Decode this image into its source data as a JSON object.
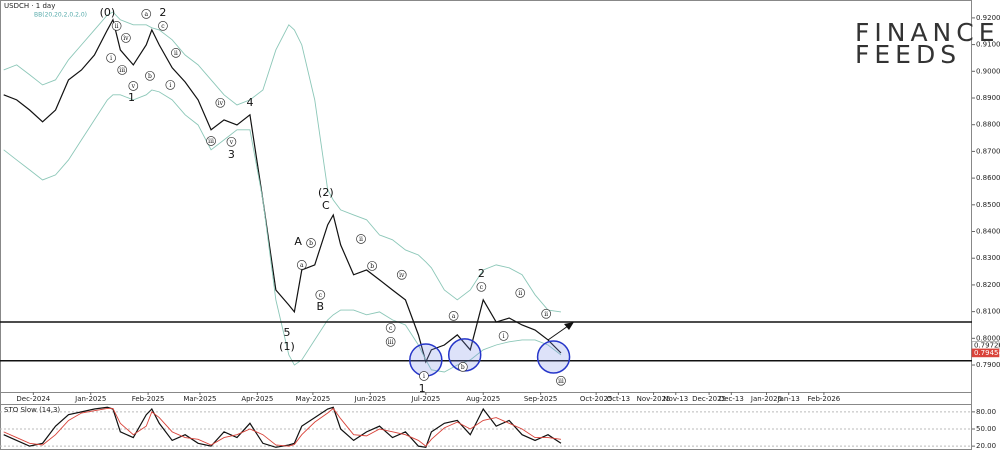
{
  "header": {
    "symbol": "USDCH · 1 day",
    "indicator": "BB(20,20,2,0,2,0)"
  },
  "logo": {
    "line1": "FINANCE",
    "line2": "FEEDS"
  },
  "chart_data": [
    {
      "type": "line",
      "x": [
        "2024-11-15",
        "2024-11-22",
        "2024-11-29",
        "2024-12-06",
        "2024-12-13",
        "2024-12-20",
        "2024-12-27",
        "2025-01-03",
        "2025-01-10",
        "2025-01-13",
        "2025-01-17",
        "2025-01-24",
        "2025-01-31",
        "2025-02-03",
        "2025-02-07",
        "2025-02-14",
        "2025-02-21",
        "2025-02-28",
        "2025-03-07",
        "2025-03-14",
        "2025-03-21",
        "2025-03-28",
        "2025-04-04",
        "2025-04-11",
        "2025-04-18",
        "2025-04-21",
        "2025-04-25",
        "2025-05-02",
        "2025-05-09",
        "2025-05-12",
        "2025-05-16",
        "2025-05-23",
        "2025-05-30",
        "2025-06-06",
        "2025-06-13",
        "2025-06-20",
        "2025-06-27",
        "2025-07-01",
        "2025-07-04",
        "2025-07-11",
        "2025-07-18",
        "2025-07-25",
        "2025-08-01",
        "2025-08-08",
        "2025-08-15",
        "2025-08-22",
        "2025-08-29",
        "2025-09-05",
        "2025-09-12"
      ],
      "series": [
        {
          "color": "#111111",
          "values": [
            0.8912,
            0.8893,
            0.8855,
            0.8811,
            0.8855,
            0.8968,
            0.9005,
            0.9061,
            0.9155,
            0.9193,
            0.908,
            0.9024,
            0.9099,
            0.9155,
            0.9099,
            0.9013,
            0.896,
            0.8893,
            0.8781,
            0.8818,
            0.8799,
            0.8837,
            0.8518,
            0.8181,
            0.8125,
            0.8099,
            0.8256,
            0.8275,
            0.8425,
            0.8462,
            0.835,
            0.8238,
            0.8256,
            0.8219,
            0.8181,
            0.8144,
            0.8013,
            0.7912,
            0.7957,
            0.7975,
            0.8013,
            0.7957,
            0.8144,
            0.8061,
            0.8076,
            0.805,
            0.8031,
            0.7994,
            0.7945
          ]
        },
        {
          "color": "#8cc7b8",
          "values": [
            0.9005,
            0.9024,
            0.8987,
            0.8949,
            0.8968,
            0.9043,
            0.9099,
            0.9155,
            0.9211,
            0.9222,
            0.9193,
            0.9174,
            0.9174,
            0.9163,
            0.9155,
            0.9118,
            0.9061,
            0.9024,
            0.8968,
            0.8912,
            0.8874,
            0.8893,
            0.893,
            0.908,
            0.9174,
            0.9155,
            0.9099,
            0.8893,
            0.8556,
            0.8518,
            0.8481,
            0.8462,
            0.8444,
            0.8387,
            0.8369,
            0.8331,
            0.8312,
            0.8286,
            0.8264,
            0.8181,
            0.8144,
            0.8181,
            0.8256,
            0.8275,
            0.8264,
            0.8238,
            0.8163,
            0.8106,
            0.8099
          ]
        },
        {
          "color": "#8cc7b8",
          "values": [
            0.8706,
            0.8668,
            0.8631,
            0.8593,
            0.8612,
            0.8668,
            0.8743,
            0.8818,
            0.8893,
            0.8912,
            0.8912,
            0.8893,
            0.8912,
            0.893,
            0.8923,
            0.8893,
            0.8837,
            0.8799,
            0.8706,
            0.8743,
            0.8781,
            0.8781,
            0.8518,
            0.8144,
            0.7938,
            0.79,
            0.7919,
            0.7994,
            0.8069,
            0.8088,
            0.8106,
            0.8106,
            0.8088,
            0.8099,
            0.8069,
            0.805,
            0.7975,
            0.7919,
            0.7882,
            0.7874,
            0.79,
            0.7919,
            0.7957,
            0.7975,
            0.7987,
            0.7994,
            0.7994,
            0.7975,
            0.7938
          ]
        }
      ],
      "xlim": [
        "2024-11-13",
        "2026-04-22"
      ],
      "xticks": [
        {
          "value": "2024-12-01",
          "label": "Dec-2024"
        },
        {
          "value": "2025-01-01",
          "label": "Jan-2025"
        },
        {
          "value": "2025-02-01",
          "label": "Feb-2025"
        },
        {
          "value": "2025-03-01",
          "label": "Mar-2025"
        },
        {
          "value": "2025-04-01",
          "label": "Apr-2025"
        },
        {
          "value": "2025-05-01",
          "label": "May-2025"
        },
        {
          "value": "2025-06-01",
          "label": "Jun-2025"
        },
        {
          "value": "2025-07-01",
          "label": "Jul-2025"
        },
        {
          "value": "2025-08-01",
          "label": "Aug-2025"
        },
        {
          "value": "2025-09-01",
          "label": "Sep-2025"
        },
        {
          "value": "2025-10-01",
          "label": "Oct-2025"
        },
        {
          "value": "2025-10-13",
          "label": "Oct-13"
        },
        {
          "value": "2025-11-01",
          "label": "Nov-2025"
        },
        {
          "value": "2025-11-13",
          "label": "Nov-13"
        },
        {
          "value": "2025-12-01",
          "label": "Dec-2025"
        },
        {
          "value": "2025-12-13",
          "label": "Dec-13"
        },
        {
          "value": "2026-01-01",
          "label": "Jan-2026"
        },
        {
          "value": "2026-01-13",
          "label": "Jan-13"
        },
        {
          "value": "2026-02-01",
          "label": "Feb-2026"
        }
      ],
      "ylim": [
        0.7799,
        0.9267
      ],
      "yticks": [
        {
          "value": 0.92,
          "label": "0.92000"
        },
        {
          "value": 0.91,
          "label": "0.91000"
        },
        {
          "value": 0.9,
          "label": "0.90000"
        },
        {
          "value": 0.89,
          "label": "0.89000"
        },
        {
          "value": 0.88,
          "label": "0.88000"
        },
        {
          "value": 0.87,
          "label": "0.87000"
        },
        {
          "value": 0.86,
          "label": "0.86000"
        },
        {
          "value": 0.85,
          "label": "0.85000"
        },
        {
          "value": 0.84,
          "label": "0.84000"
        },
        {
          "value": 0.83,
          "label": "0.83000"
        },
        {
          "value": 0.82,
          "label": "0.82000"
        },
        {
          "value": 0.81,
          "label": "0.81000"
        },
        {
          "value": 0.8,
          "label": "0.80000"
        },
        {
          "value": 0.79,
          "label": "0.79000"
        }
      ],
      "levels": [
        0.8061,
        0.7916
      ],
      "circles": [
        {
          "x": "2025-07-01",
          "y": 0.7919
        },
        {
          "x": "2025-07-22",
          "y": 0.7938
        },
        {
          "x": "2025-09-08",
          "y": 0.793
        }
      ],
      "price_labels": [
        {
          "value": 0.79726,
          "color": "#ffffff"
        },
        {
          "value": 0.79454,
          "color": "#d9433a"
        }
      ],
      "wave_labels": [
        {
          "text": "(0)",
          "x": "2025-01-10",
          "y": 0.9219
        },
        {
          "text": "2",
          "x": "2025-02-09",
          "y": 0.9219
        },
        {
          "text": "1",
          "x": "2025-01-23",
          "y": 0.89
        },
        {
          "text": "4",
          "x": "2025-03-28",
          "y": 0.8882
        },
        {
          "text": "3",
          "x": "2025-03-18",
          "y": 0.8687
        },
        {
          "text": "(2)",
          "x": "2025-05-08",
          "y": 0.8545
        },
        {
          "text": "C",
          "x": "2025-05-08",
          "y": 0.8496
        },
        {
          "text": "A",
          "x": "2025-04-23",
          "y": 0.8361
        },
        {
          "text": "B",
          "x": "2025-05-05",
          "y": 0.8118
        },
        {
          "text": "5",
          "x": "2025-04-17",
          "y": 0.802
        },
        {
          "text": "(1)",
          "x": "2025-04-17",
          "y": 0.7968
        },
        {
          "text": "2",
          "x": "2025-07-31",
          "y": 0.8241
        },
        {
          "text": "1",
          "x": "2025-06-29",
          "y": 0.7811
        }
      ],
      "circled_labels": [
        {
          "text": "ii",
          "x": "2025-01-15",
          "y": 0.917
        },
        {
          "text": "iv",
          "x": "2025-01-20",
          "y": 0.9125
        },
        {
          "text": "i",
          "x": "2025-01-12",
          "y": 0.905
        },
        {
          "text": "iii",
          "x": "2025-01-18",
          "y": 0.9005
        },
        {
          "text": "v",
          "x": "2025-01-24",
          "y": 0.8945
        },
        {
          "text": "a",
          "x": "2025-01-31",
          "y": 0.9215
        },
        {
          "text": "b",
          "x": "2025-02-02",
          "y": 0.8983
        },
        {
          "text": "c",
          "x": "2025-02-09",
          "y": 0.917
        },
        {
          "text": "ii",
          "x": "2025-02-16",
          "y": 0.9069
        },
        {
          "text": "i",
          "x": "2025-02-13",
          "y": 0.8949
        },
        {
          "text": "iv",
          "x": "2025-03-12",
          "y": 0.8882
        },
        {
          "text": "iii",
          "x": "2025-03-07",
          "y": 0.8739
        },
        {
          "text": "v",
          "x": "2025-03-18",
          "y": 0.8736
        },
        {
          "text": "a",
          "x": "2025-04-25",
          "y": 0.8275
        },
        {
          "text": "b",
          "x": "2025-04-30",
          "y": 0.8357
        },
        {
          "text": "c",
          "x": "2025-05-05",
          "y": 0.8163
        },
        {
          "text": "ii",
          "x": "2025-05-27",
          "y": 0.8372
        },
        {
          "text": "b",
          "x": "2025-06-02",
          "y": 0.8271
        },
        {
          "text": "iv",
          "x": "2025-06-18",
          "y": 0.8238
        },
        {
          "text": "c",
          "x": "2025-06-12",
          "y": 0.8039
        },
        {
          "text": "iii",
          "x": "2025-06-12",
          "y": 0.7987
        },
        {
          "text": "a",
          "x": "2025-07-16",
          "y": 0.8084
        },
        {
          "text": "b",
          "x": "2025-07-21",
          "y": 0.7893
        },
        {
          "text": "i",
          "x": "2025-06-30",
          "y": 0.7859
        },
        {
          "text": "c",
          "x": "2025-07-31",
          "y": 0.8193
        },
        {
          "text": "ii",
          "x": "2025-08-21",
          "y": 0.817
        },
        {
          "text": "i",
          "x": "2025-08-12",
          "y": 0.8009
        },
        {
          "text": "ii",
          "x": "2025-09-04",
          "y": 0.8092
        },
        {
          "text": "iii",
          "x": "2025-09-12",
          "y": 0.7841
        }
      ]
    },
    {
      "type": "line",
      "title": "STO Slow (14,3)",
      "x": [
        "2024-11-15",
        "2024-11-22",
        "2024-11-29",
        "2024-12-06",
        "2024-12-13",
        "2024-12-20",
        "2024-12-27",
        "2025-01-03",
        "2025-01-10",
        "2025-01-13",
        "2025-01-17",
        "2025-01-24",
        "2025-01-31",
        "2025-02-03",
        "2025-02-07",
        "2025-02-14",
        "2025-02-21",
        "2025-02-28",
        "2025-03-07",
        "2025-03-14",
        "2025-03-21",
        "2025-03-28",
        "2025-04-04",
        "2025-04-11",
        "2025-04-18",
        "2025-04-21",
        "2025-04-25",
        "2025-05-02",
        "2025-05-09",
        "2025-05-12",
        "2025-05-16",
        "2025-05-23",
        "2025-05-30",
        "2025-06-06",
        "2025-06-13",
        "2025-06-20",
        "2025-06-27",
        "2025-07-01",
        "2025-07-04",
        "2025-07-11",
        "2025-07-18",
        "2025-07-25",
        "2025-08-01",
        "2025-08-08",
        "2025-08-15",
        "2025-08-22",
        "2025-08-29",
        "2025-09-05",
        "2025-09-12"
      ],
      "series": [
        {
          "color": "#111111",
          "values": [
            40,
            30,
            20,
            25,
            55,
            75,
            80,
            85,
            88,
            85,
            45,
            35,
            75,
            85,
            60,
            30,
            40,
            25,
            20,
            45,
            35,
            60,
            25,
            18,
            22,
            25,
            55,
            70,
            85,
            88,
            50,
            30,
            45,
            55,
            35,
            45,
            20,
            18,
            45,
            60,
            65,
            40,
            85,
            55,
            65,
            40,
            30,
            40,
            25
          ]
        },
        {
          "color": "#d9433a",
          "values": [
            45,
            35,
            25,
            22,
            40,
            65,
            78,
            82,
            86,
            86,
            60,
            40,
            55,
            80,
            70,
            45,
            35,
            32,
            22,
            35,
            40,
            50,
            40,
            22,
            20,
            23,
            40,
            62,
            78,
            86,
            68,
            40,
            38,
            50,
            45,
            40,
            30,
            20,
            32,
            52,
            62,
            50,
            65,
            70,
            60,
            50,
            35,
            35,
            32
          ]
        }
      ],
      "ylim": [
        15,
        92
      ],
      "yticks": [
        {
          "value": 80,
          "label": "80.00"
        },
        {
          "value": 50,
          "label": "50.00"
        },
        {
          "value": 20,
          "label": "20.00"
        }
      ]
    }
  ]
}
